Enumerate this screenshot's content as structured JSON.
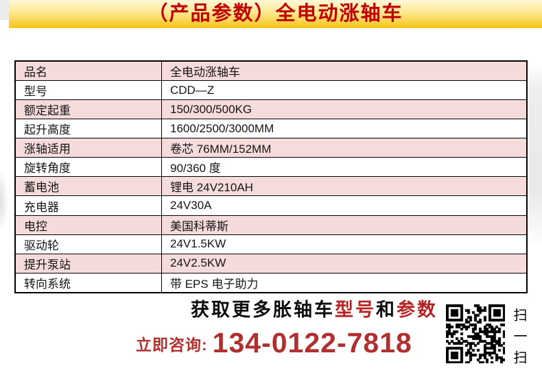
{
  "banner": {
    "title": "（产品参数）全电动涨轴车"
  },
  "table": {
    "rows": [
      {
        "label": "品名",
        "value": "全电动涨轴车"
      },
      {
        "label": "型号",
        "value": "CDD—Z"
      },
      {
        "label": "额定起重",
        "value": "150/300/500KG"
      },
      {
        "label": "起升高度",
        "value": "1600/2500/3000MM"
      },
      {
        "label": "涨轴适用",
        "value": "卷芯 76MM/152MM"
      },
      {
        "label": "旋转角度",
        "value": "90/360 度"
      },
      {
        "label": "蓄电池",
        "value": "锂电 24V210AH"
      },
      {
        "label": "充电器",
        "value": "24V30A"
      },
      {
        "label": "电控",
        "value": "美国科蒂斯"
      },
      {
        "label": "驱动轮",
        "value": "24V1.5KW"
      },
      {
        "label": "提升泵站",
        "value": "24V2.5KW"
      },
      {
        "label": "转向系统",
        "value": "带 EPS 电子助力"
      }
    ]
  },
  "promo": {
    "segments": [
      {
        "text": "获取更多胀轴车",
        "red": false
      },
      {
        "text": "型号",
        "red": true
      },
      {
        "text": "和",
        "red": false
      },
      {
        "text": "参数",
        "red": true
      }
    ],
    "cta_label": "立即咨询:",
    "phone": "134-0122-7818"
  },
  "qr": {
    "caption": "扫一扫"
  },
  "colors": {
    "banner_top": "#FFF8D9",
    "banner_bottom": "#F6C318",
    "banner_text": "#C00000",
    "row_pink": "#F6DBDB",
    "promo_red": "#B52424",
    "phone_red": "#B03030",
    "table_border": "#000000"
  }
}
